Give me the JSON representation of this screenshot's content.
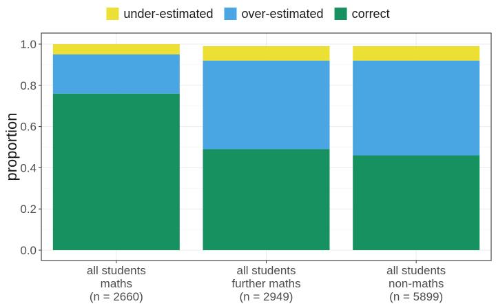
{
  "chart_data": {
    "type": "bar",
    "stacked": true,
    "title": "",
    "xlabel": "",
    "ylabel": "proportion",
    "ylim": [
      0,
      1.05
    ],
    "yticks": [
      "0.0",
      "0.2",
      "0.4",
      "0.6",
      "0.8",
      "1.0"
    ],
    "ytick_values": [
      0,
      0.2,
      0.4,
      0.6,
      0.8,
      1.0
    ],
    "grid": true,
    "legend_position": "top",
    "categories": [
      [
        "all students",
        "maths",
        "(n = 2660)"
      ],
      [
        "all students",
        "further maths",
        "(n = 2949)"
      ],
      [
        "all students",
        "non-maths",
        "(n = 5899)"
      ]
    ],
    "series": [
      {
        "name": "correct",
        "color": "#189161",
        "values": [
          0.76,
          0.49,
          0.46
        ]
      },
      {
        "name": "over-estimated",
        "color": "#4aa6e3",
        "values": [
          0.19,
          0.43,
          0.46
        ]
      },
      {
        "name": "under-estimated",
        "color": "#ede035",
        "values": [
          0.05,
          0.07,
          0.07
        ]
      }
    ],
    "legend_order": [
      "under-estimated",
      "over-estimated",
      "correct"
    ]
  }
}
